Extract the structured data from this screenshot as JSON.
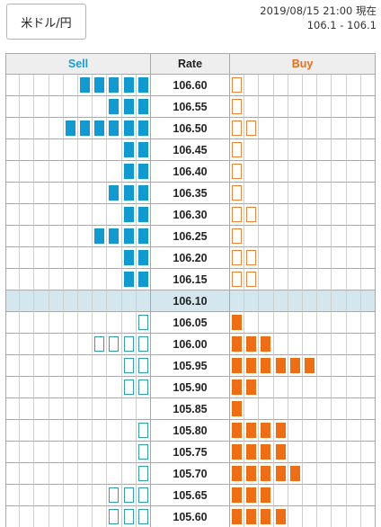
{
  "pair_button": {
    "label": "米ドル/円"
  },
  "timestamp": {
    "datetime": "2019/08/15 21:00 現在",
    "range": "106.1 - 106.1"
  },
  "headers": {
    "sell": "Sell",
    "rate": "Rate",
    "buy": "Buy"
  },
  "colors": {
    "sell": "#0f9ad2",
    "buy": "#f06e12",
    "current_row": "#d5e7ee"
  },
  "current_rate": "106.10",
  "order_book": [
    {
      "rate": "106.60",
      "sell": 5,
      "buy": 1
    },
    {
      "rate": "106.55",
      "sell": 3,
      "buy": 1
    },
    {
      "rate": "106.50",
      "sell": 6,
      "buy": 2
    },
    {
      "rate": "106.45",
      "sell": 2,
      "buy": 1
    },
    {
      "rate": "106.40",
      "sell": 2,
      "buy": 1
    },
    {
      "rate": "106.35",
      "sell": 3,
      "buy": 1
    },
    {
      "rate": "106.30",
      "sell": 2,
      "buy": 2
    },
    {
      "rate": "106.25",
      "sell": 4,
      "buy": 1
    },
    {
      "rate": "106.20",
      "sell": 2,
      "buy": 2
    },
    {
      "rate": "106.15",
      "sell": 2,
      "buy": 2
    },
    {
      "rate": "106.10",
      "sell": 0,
      "buy": 0
    },
    {
      "rate": "106.05",
      "sell": 1,
      "buy": 1
    },
    {
      "rate": "106.00",
      "sell": 4,
      "buy": 3
    },
    {
      "rate": "105.95",
      "sell": 2,
      "buy": 6
    },
    {
      "rate": "105.90",
      "sell": 2,
      "buy": 2
    },
    {
      "rate": "105.85",
      "sell": 0,
      "buy": 1
    },
    {
      "rate": "105.80",
      "sell": 1,
      "buy": 4
    },
    {
      "rate": "105.75",
      "sell": 1,
      "buy": 4
    },
    {
      "rate": "105.70",
      "sell": 1,
      "buy": 5
    },
    {
      "rate": "105.65",
      "sell": 3,
      "buy": 3
    },
    {
      "rate": "105.60",
      "sell": 3,
      "buy": 4
    }
  ]
}
